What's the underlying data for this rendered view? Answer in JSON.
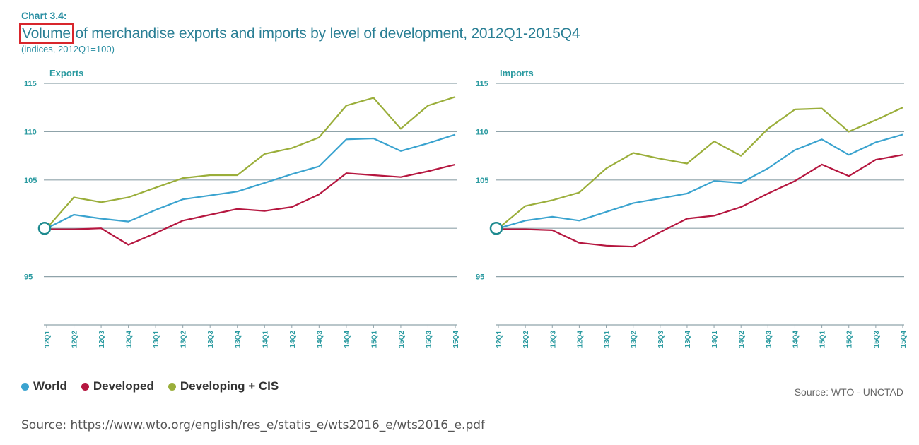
{
  "header": {
    "chart_number": "Chart 3.4:",
    "title_highlight": "Volume",
    "title_rest": " of merchandise exports and imports by level of development, 2012Q1-2015Q4",
    "subtitle": "(indices, 2012Q1=100)"
  },
  "legend": [
    {
      "label": "World",
      "color": "#3aa3cf"
    },
    {
      "label": "Developed",
      "color": "#b5163f"
    },
    {
      "label": "Developing + CIS",
      "color": "#9aae3a"
    }
  ],
  "source_right": "Source:  WTO - UNCTAD",
  "source_bottom": "Source: https://www.wto.org/english/res_e/statis_e/wts2016_e/wts2016_e.pdf",
  "chart_data": [
    {
      "type": "line",
      "title": "Exports",
      "categories": [
        "12Q1",
        "12Q2",
        "12Q3",
        "12Q4",
        "13Q1",
        "13Q2",
        "13Q3",
        "13Q4",
        "14Q1",
        "14Q2",
        "14Q3",
        "14Q4",
        "15Q1",
        "15Q2",
        "15Q3",
        "15Q4"
      ],
      "yticks": [
        95,
        105,
        110,
        115
      ],
      "ylim": [
        90,
        115
      ],
      "series": [
        {
          "name": "World",
          "color": "#3aa3cf",
          "values": [
            100,
            101.4,
            101.0,
            100.7,
            101.9,
            103.0,
            103.4,
            103.8,
            104.7,
            105.6,
            106.4,
            109.2,
            109.3,
            108.0,
            108.8,
            109.7
          ]
        },
        {
          "name": "Developed",
          "color": "#b5163f",
          "values": [
            99.9,
            99.9,
            100.0,
            98.3,
            99.5,
            100.8,
            101.4,
            102.0,
            101.8,
            102.2,
            103.5,
            105.7,
            105.5,
            105.3,
            105.9,
            106.6
          ]
        },
        {
          "name": "Developing + CIS",
          "color": "#9aae3a",
          "values": [
            100,
            103.2,
            102.7,
            103.2,
            104.2,
            105.2,
            105.5,
            105.5,
            107.7,
            108.3,
            109.4,
            112.7,
            113.5,
            110.3,
            112.7,
            113.6
          ]
        }
      ]
    },
    {
      "type": "line",
      "title": "Imports",
      "categories": [
        "12Q1",
        "12Q2",
        "12Q3",
        "12Q4",
        "13Q1",
        "13Q2",
        "13Q3",
        "13Q4",
        "14Q1",
        "14Q2",
        "14Q3",
        "14Q4",
        "15Q1",
        "15Q2",
        "15Q3",
        "15Q4"
      ],
      "yticks": [
        95,
        105,
        110,
        115
      ],
      "ylim": [
        90,
        115
      ],
      "series": [
        {
          "name": "World",
          "color": "#3aa3cf",
          "values": [
            100,
            100.8,
            101.2,
            100.8,
            101.7,
            102.6,
            103.1,
            103.6,
            104.9,
            104.7,
            106.2,
            108.1,
            109.2,
            107.6,
            108.9,
            109.7
          ]
        },
        {
          "name": "Developed",
          "color": "#b5163f",
          "values": [
            99.9,
            99.9,
            99.8,
            98.5,
            98.2,
            98.1,
            99.6,
            101.0,
            101.3,
            102.2,
            103.6,
            104.9,
            106.6,
            105.4,
            107.1,
            107.6
          ]
        },
        {
          "name": "Developing + CIS",
          "color": "#9aae3a",
          "values": [
            100,
            102.3,
            102.9,
            103.7,
            106.2,
            107.8,
            107.2,
            106.7,
            109.0,
            107.5,
            110.3,
            112.3,
            112.4,
            110.0,
            111.2,
            112.5
          ]
        }
      ]
    }
  ]
}
